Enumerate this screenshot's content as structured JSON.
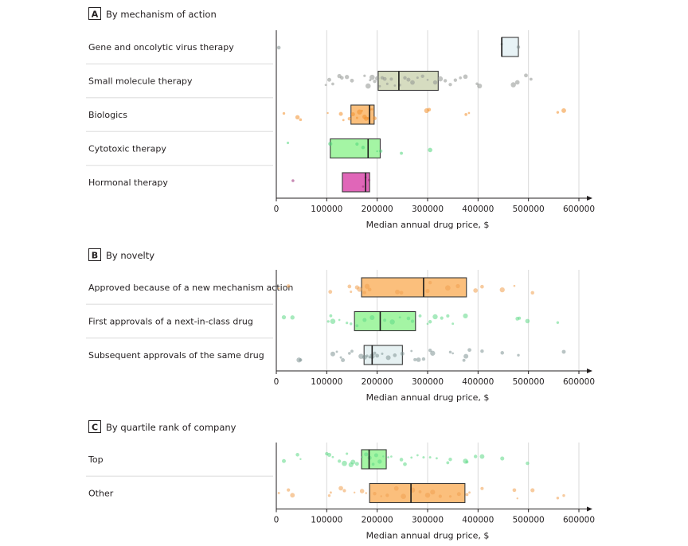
{
  "figure": {
    "colors": {
      "gridline": "#d9d9d9",
      "separator": "#e3e3e3",
      "axis": "#231f20",
      "box_stroke": "#3a3a3a",
      "median": "#1a1a1a"
    }
  },
  "chart_data": [
    {
      "type": "box",
      "panel_letter": "A",
      "title": "By mechanism of action",
      "xlabel": "Median annual drug price, $",
      "ylabel": "",
      "xlim": [
        0,
        600000
      ],
      "xticks": [
        0,
        100000,
        200000,
        300000,
        400000,
        500000,
        600000
      ],
      "xtick_labels": [
        "0",
        "100000",
        "200000",
        "300000",
        "400000",
        "500000",
        "600000"
      ],
      "grid": true,
      "categories": [
        {
          "label": "Gene and oncolytic virus therapy",
          "q1": 447000,
          "median": 447000,
          "q3": 480000,
          "color": "#e8f3f6",
          "point_color": "#7f8c8c",
          "points": [
            5000,
            447000,
            480000
          ]
        },
        {
          "label": "Small molecule therapy",
          "q1": 202000,
          "median": 243000,
          "q3": 321000,
          "color": "#d6dcc0",
          "point_color": "#8f948f",
          "points": [
            98000,
            105000,
            112000,
            125000,
            130000,
            140000,
            150000,
            175000,
            182000,
            186000,
            190000,
            195000,
            200000,
            205000,
            210000,
            215000,
            220000,
            228000,
            235000,
            245000,
            255000,
            262000,
            270000,
            280000,
            290000,
            300000,
            315000,
            325000,
            335000,
            345000,
            355000,
            365000,
            375000,
            398000,
            403000,
            470000,
            478000,
            495000,
            505000
          ]
        },
        {
          "label": "Biologics",
          "q1": 148000,
          "median": 185000,
          "q3": 194000,
          "color": "#fbbf7c",
          "point_color": "#f28f2c",
          "points": [
            15000,
            42000,
            48000,
            102000,
            128000,
            133000,
            145000,
            152000,
            160000,
            165000,
            170000,
            175000,
            178000,
            182000,
            186000,
            190000,
            195000,
            298000,
            303000,
            376000,
            382000,
            558000,
            570000
          ]
        },
        {
          "label": "Cytotoxic therapy",
          "q1": 107000,
          "median": 182000,
          "q3": 206000,
          "color": "#a4f5a4",
          "point_color": "#4fd67a",
          "points": [
            23000,
            107000,
            160000,
            172000,
            200000,
            207000,
            248000,
            305000
          ]
        },
        {
          "label": "Hormonal therapy",
          "q1": 131000,
          "median": 177000,
          "q3": 185000,
          "color": "#e066b8",
          "point_color": "#9b2c78",
          "points": [
            33000,
            172000,
            177000,
            184000
          ]
        }
      ]
    },
    {
      "type": "box",
      "panel_letter": "B",
      "title": "By novelty",
      "xlabel": "Median annual drug price, $",
      "ylabel": "",
      "xlim": [
        0,
        600000
      ],
      "xticks": [
        0,
        100000,
        200000,
        300000,
        400000,
        500000,
        600000
      ],
      "xtick_labels": [
        "0",
        "100000",
        "200000",
        "300000",
        "400000",
        "500000",
        "600000"
      ],
      "grid": true,
      "categories": [
        {
          "label": "Approved because of a new mechanism action",
          "q1": 169000,
          "median": 292000,
          "q3": 377000,
          "color": "#fbbf7c",
          "point_color": "#f0a050",
          "points": [
            5000,
            24000,
            107000,
            145000,
            148000,
            160000,
            165000,
            175000,
            180000,
            185000,
            240000,
            248000,
            300000,
            305000,
            340000,
            360000,
            395000,
            408000,
            448000,
            472000,
            508000
          ]
        },
        {
          "label": "First approvals of a next-in-class drug",
          "q1": 155000,
          "median": 206000,
          "q3": 276000,
          "color": "#a4f5a4",
          "point_color": "#5ed886",
          "points": [
            15000,
            32000,
            103000,
            108000,
            112000,
            125000,
            140000,
            148000,
            160000,
            175000,
            190000,
            215000,
            230000,
            245000,
            262000,
            270000,
            285000,
            300000,
            305000,
            315000,
            328000,
            340000,
            350000,
            375000,
            478000,
            482000,
            498000,
            558000
          ]
        },
        {
          "label": "Subsequent approvals of the same drug",
          "q1": 174000,
          "median": 190000,
          "q3": 250000,
          "color": "#e6f1f2",
          "point_color": "#7f9494",
          "points": [
            45000,
            48000,
            112000,
            120000,
            128000,
            132000,
            145000,
            150000,
            168000,
            175000,
            180000,
            185000,
            190000,
            195000,
            200000,
            210000,
            222000,
            235000,
            250000,
            268000,
            275000,
            282000,
            292000,
            305000,
            310000,
            345000,
            350000,
            372000,
            376000,
            383000,
            408000,
            448000,
            480000,
            570000
          ]
        }
      ]
    },
    {
      "type": "box",
      "panel_letter": "C",
      "title": "By quartile rank of company",
      "xlabel": "Median annual drug price, $",
      "ylabel": "",
      "xlim": [
        0,
        600000
      ],
      "xticks": [
        0,
        100000,
        200000,
        300000,
        400000,
        500000,
        600000
      ],
      "xtick_labels": [
        "0",
        "100000",
        "200000",
        "300000",
        "400000",
        "500000",
        "600000"
      ],
      "grid": true,
      "categories": [
        {
          "label": "Top",
          "q1": 169000,
          "median": 184000,
          "q3": 218000,
          "color": "#a4f5a4",
          "point_color": "#5ed886",
          "points": [
            15000,
            42000,
            48000,
            100000,
            105000,
            112000,
            125000,
            135000,
            140000,
            148000,
            152000,
            160000,
            170000,
            178000,
            185000,
            192000,
            198000,
            205000,
            212000,
            222000,
            228000,
            248000,
            255000,
            268000,
            280000,
            292000,
            305000,
            318000,
            340000,
            345000,
            375000,
            378000,
            395000,
            408000,
            448000,
            498000
          ]
        },
        {
          "label": "Other",
          "q1": 185000,
          "median": 267000,
          "q3": 374000,
          "color": "#fbbf7c",
          "point_color": "#f0a050",
          "points": [
            5000,
            24000,
            32000,
            105000,
            108000,
            128000,
            135000,
            155000,
            170000,
            178000,
            195000,
            208000,
            220000,
            238000,
            252000,
            270000,
            285000,
            300000,
            310000,
            325000,
            345000,
            362000,
            378000,
            383000,
            408000,
            472000,
            478000,
            508000,
            558000,
            570000
          ]
        }
      ]
    }
  ]
}
